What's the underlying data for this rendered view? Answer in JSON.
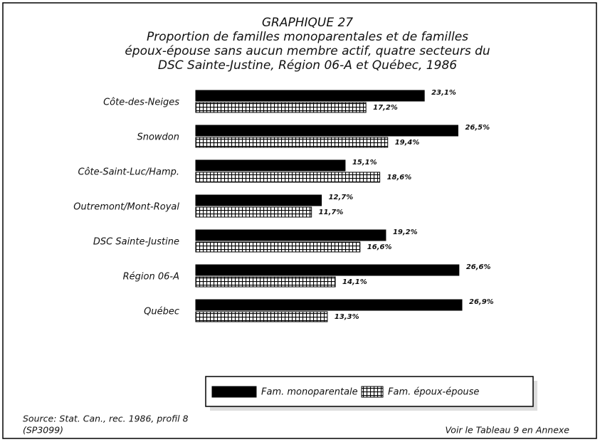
{
  "chart_data": {
    "type": "bar",
    "orientation": "horizontal",
    "title": "GRAPHIQUE 27",
    "subtitle": [
      "Proportion de familles monoparentales et de familles",
      "époux-épouse sans aucun membre actif, quatre secteurs du",
      "DSC Sainte-Justine, Région 06-A et Québec, 1986"
    ],
    "categories": [
      "Côte-des-Neiges",
      "Snowdon",
      "Côte-Saint-Luc/Hamp.",
      "Outremont/Mont-Royal",
      "DSC Sainte-Justine",
      "Région 06-A",
      "Québec"
    ],
    "series": [
      {
        "name": "Fam. monoparentale",
        "color": "#000000",
        "values": [
          23.1,
          26.5,
          15.1,
          12.7,
          19.2,
          26.6,
          26.9
        ],
        "value_labels": [
          "23,1%",
          "26,5%",
          "15,1%",
          "12,7%",
          "19,2%",
          "26,6%",
          "26,9%"
        ]
      },
      {
        "name": "Fam. époux-épouse",
        "color": "#ffffff",
        "hatch": "grid",
        "values": [
          17.2,
          19.4,
          18.6,
          11.7,
          16.6,
          14.1,
          13.3
        ],
        "value_labels": [
          "17,2%",
          "19,4%",
          "18,6%",
          "11,7%",
          "16,6%",
          "14,1%",
          "13,3%"
        ]
      }
    ],
    "legend": "bottom",
    "source": [
      "Source: Stat. Can., rec. 1986, profil 8",
      "(SP3099)"
    ],
    "note": "Voir le Tableau 9 en Annexe"
  }
}
